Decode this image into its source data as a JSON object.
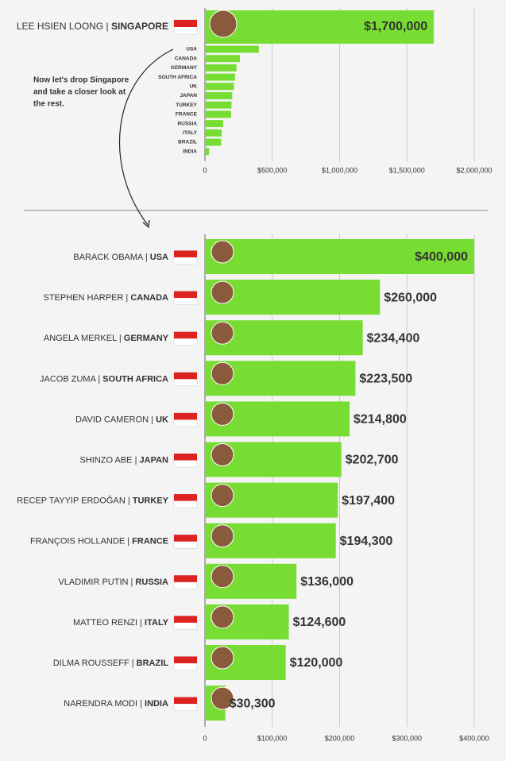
{
  "chart_data": [
    {
      "type": "bar",
      "orientation": "horizontal",
      "color": "#77dd33",
      "grid": true,
      "highlight": {
        "leader": "LEE HSIEN LOONG",
        "country": "SINGAPORE",
        "value": 1700000,
        "value_label": "$1,700,000"
      },
      "categories": [
        "USA",
        "CANADA",
        "GERMANY",
        "SOUTH AFRICA",
        "UK",
        "JAPAN",
        "TURKEY",
        "FRANCE",
        "RUSSIA",
        "ITALY",
        "BRAZIL",
        "INDIA"
      ],
      "values": [
        400000,
        260000,
        234400,
        223500,
        214800,
        202700,
        197400,
        194300,
        136000,
        124600,
        120000,
        30300
      ],
      "xlim": [
        0,
        2000000
      ],
      "xticks": [
        0,
        {
          "value": 500000,
          "label": "$500,000"
        },
        {
          "value": 1000000,
          "label": "$1,000,000"
        },
        {
          "value": 1500000,
          "label": "$1,500,000"
        },
        {
          "value": 2000000,
          "label": "$2,000,000"
        }
      ],
      "annotation": [
        "Now let's drop Singapore",
        "and take a closer look at",
        "the rest."
      ]
    },
    {
      "type": "bar",
      "orientation": "horizontal",
      "color": "#77dd33",
      "grid": true,
      "leaders": [
        "BARACK OBAMA",
        "STEPHEN HARPER",
        "ANGELA MERKEL",
        "JACOB ZUMA",
        "DAVID CAMERON",
        "SHINZO ABE",
        "RECEP TAYYIP ERDOĞAN",
        "FRANÇOIS HOLLANDE",
        "VLADIMIR PUTIN",
        "MATTEO RENZI",
        "DILMA ROUSSEFF",
        "NARENDRA MODI"
      ],
      "categories": [
        "USA",
        "CANADA",
        "GERMANY",
        "SOUTH AFRICA",
        "UK",
        "JAPAN",
        "TURKEY",
        "FRANCE",
        "RUSSIA",
        "ITALY",
        "BRAZIL",
        "INDIA"
      ],
      "values": [
        400000,
        260000,
        234400,
        223500,
        214800,
        202700,
        197400,
        194300,
        136000,
        124600,
        120000,
        30300
      ],
      "value_labels": [
        "$400,000",
        "$260,000",
        "$234,400",
        "$223,500",
        "$214,800",
        "$202,700",
        "$197,400",
        "$194,300",
        "$136,000",
        "$124,600",
        "$120,000",
        "$30,300"
      ],
      "xlim": [
        0,
        400000
      ],
      "xticks": [
        0,
        {
          "value": 100000,
          "label": "$100,000"
        },
        {
          "value": 200000,
          "label": "$200,000"
        },
        {
          "value": 300000,
          "label": "$300,000"
        },
        {
          "value": 400000,
          "label": "$400,000"
        }
      ]
    }
  ]
}
